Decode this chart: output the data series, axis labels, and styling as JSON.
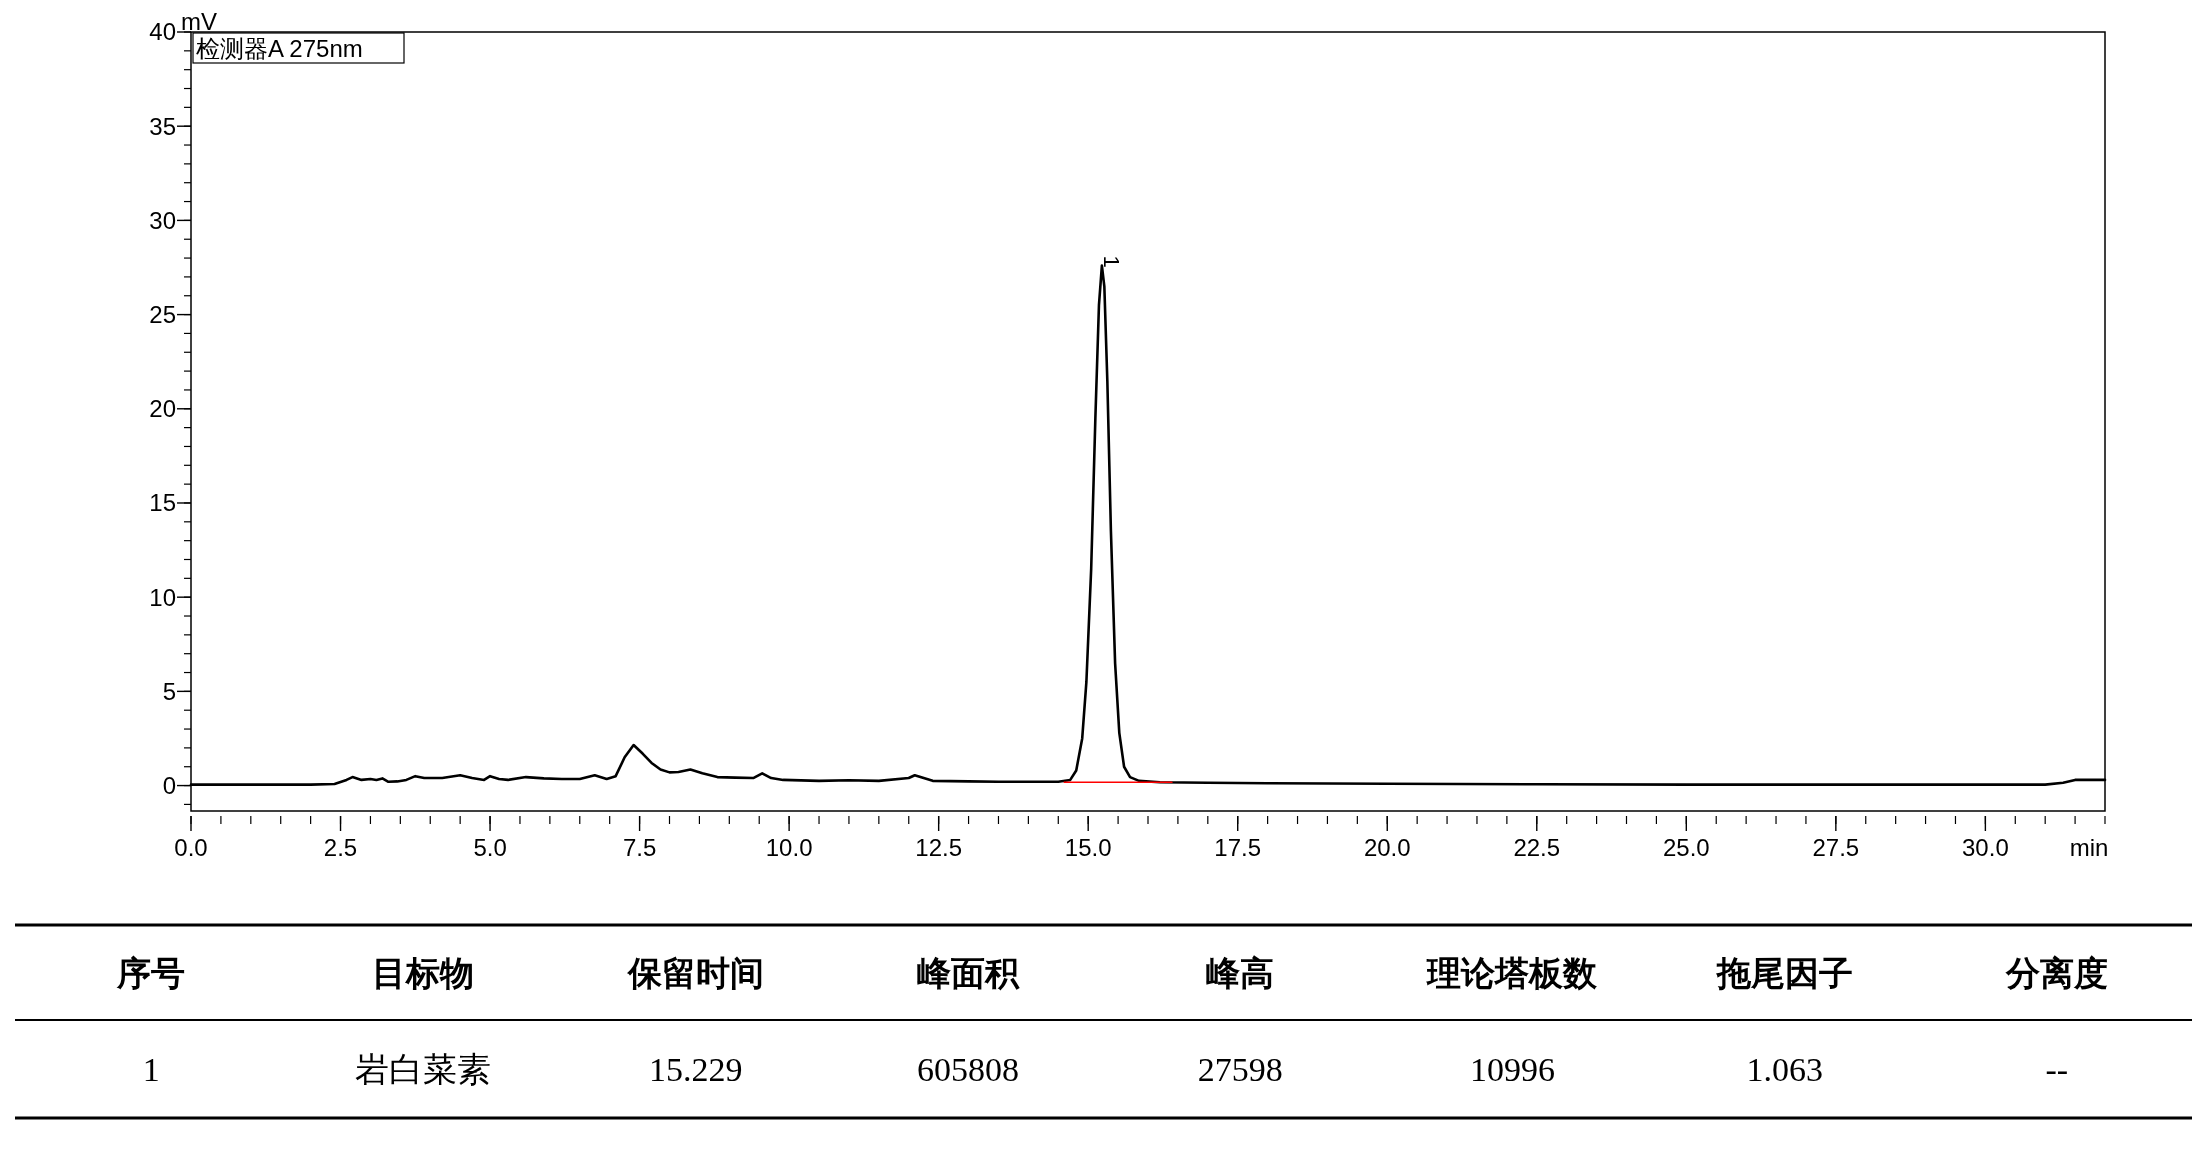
{
  "chart_data": {
    "type": "line",
    "title": "检测器A 275nm",
    "xlabel": "min",
    "ylabel": "mV",
    "xlim": [
      0,
      32
    ],
    "ylim": [
      -1.35,
      40
    ],
    "xticks": [
      {
        "value": 0,
        "label": "0.0"
      },
      2.5,
      {
        "value": 5,
        "label": "5.0"
      },
      7.5,
      {
        "value": 10,
        "label": "10.0"
      },
      12.5,
      {
        "value": 15,
        "label": "15.0"
      },
      17.5,
      {
        "value": 20,
        "label": "20.0"
      },
      22.5,
      {
        "value": 25,
        "label": "25.0"
      },
      27.5,
      {
        "value": 30,
        "label": "30.0"
      }
    ],
    "yticks": [
      0,
      5,
      10,
      15,
      20,
      25,
      30,
      35,
      40
    ],
    "grid": false,
    "marker": "none",
    "line_style": "solid",
    "series": [
      {
        "color": "#000000",
        "x": [
          0,
          1,
          2,
          2.4,
          2.6,
          2.7,
          2.85,
          3.0,
          3.1,
          3.2,
          3.3,
          3.45,
          3.6,
          3.75,
          3.9,
          4.2,
          4.5,
          4.7,
          4.9,
          5.0,
          5.15,
          5.3,
          5.6,
          5.9,
          6.2,
          6.5,
          6.75,
          6.95,
          7.1,
          7.25,
          7.4,
          7.55,
          7.7,
          7.85,
          8.0,
          8.15,
          8.35,
          8.55,
          8.8,
          9.1,
          9.4,
          9.55,
          9.7,
          9.9,
          10.5,
          11.0,
          11.5,
          12.0,
          12.1,
          12.25,
          12.4,
          13.0,
          13.5,
          14.0,
          14.5,
          14.7,
          14.8,
          14.9,
          14.97,
          15.05,
          15.12,
          15.18,
          15.229,
          15.27,
          15.32,
          15.38,
          15.45,
          15.52,
          15.6,
          15.7,
          15.85,
          16.2,
          17,
          18,
          20,
          22.5,
          25,
          28,
          31,
          31.3,
          31.5,
          32
        ],
        "values": [
          0.05,
          0.05,
          0.05,
          0.08,
          0.3,
          0.45,
          0.3,
          0.35,
          0.3,
          0.38,
          0.2,
          0.22,
          0.3,
          0.5,
          0.4,
          0.4,
          0.55,
          0.4,
          0.3,
          0.5,
          0.35,
          0.3,
          0.45,
          0.38,
          0.35,
          0.35,
          0.55,
          0.35,
          0.5,
          1.5,
          2.15,
          1.7,
          1.2,
          0.85,
          0.7,
          0.72,
          0.85,
          0.65,
          0.45,
          0.42,
          0.4,
          0.65,
          0.4,
          0.3,
          0.25,
          0.28,
          0.25,
          0.4,
          0.55,
          0.4,
          0.25,
          0.22,
          0.2,
          0.2,
          0.2,
          0.3,
          0.8,
          2.5,
          5.5,
          11.5,
          19.5,
          25.5,
          27.6,
          26.5,
          21.5,
          13.5,
          6.5,
          2.8,
          1.0,
          0.45,
          0.25,
          0.18,
          0.15,
          0.12,
          0.1,
          0.07,
          0.05,
          0.05,
          0.05,
          0.15,
          0.3,
          0.3
        ]
      },
      {
        "color": "#ff0000",
        "x": [
          14.6,
          16.4
        ],
        "values": [
          0.18,
          0.18
        ]
      }
    ],
    "annotations": [
      {
        "text": "1",
        "x": 15.229,
        "y": 27.6
      },
      "序号",
      "目标物",
      "保留时间",
      "峰面积",
      "峰高",
      "理论塔板数",
      "拖尾因子",
      "分离度",
      "1",
      "岩白菜素",
      "15.229",
      "605808",
      "27598",
      "10996",
      "1.063",
      "--"
    ]
  }
}
